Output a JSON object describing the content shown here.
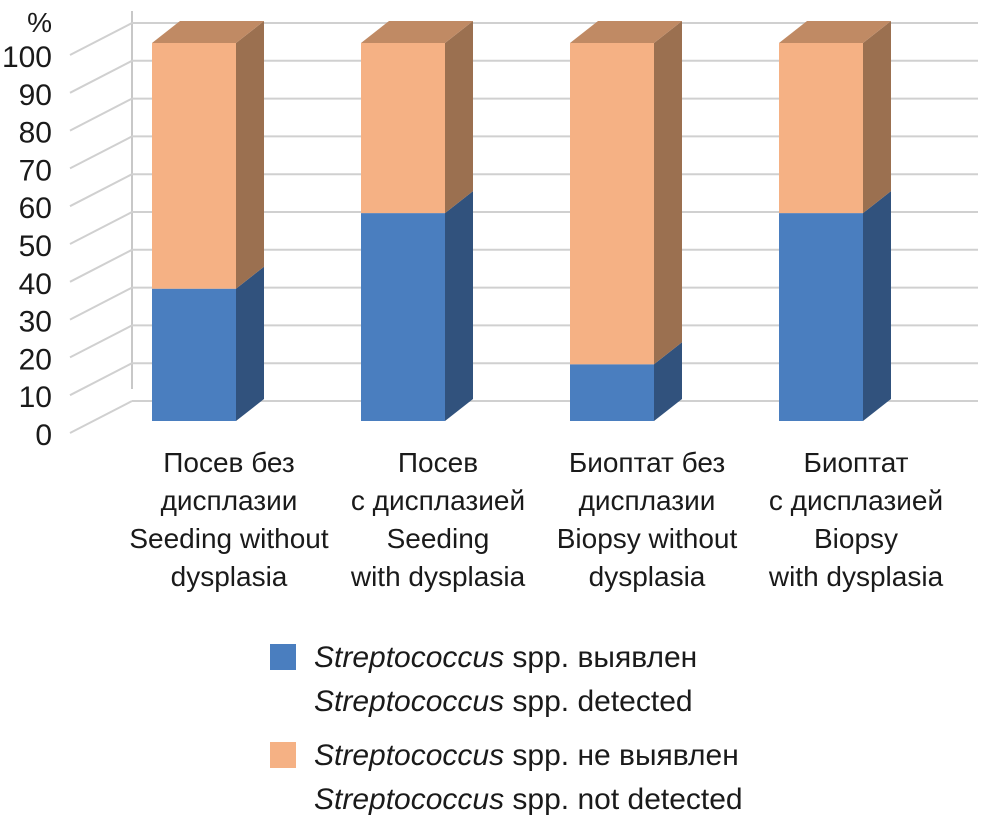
{
  "chart_data": {
    "type": "bar",
    "stacked": true,
    "three_d": true,
    "y_unit": "%",
    "ylim": [
      0,
      100
    ],
    "yticks": [
      0,
      10,
      20,
      30,
      40,
      50,
      60,
      70,
      80,
      90,
      100
    ],
    "grid": true,
    "legend_position": "bottom",
    "categories": [
      [
        "Посев без",
        "дисплазии",
        "Seeding without",
        "dysplasia"
      ],
      [
        "Посев",
        "с дисплазией",
        "Seeding",
        "with dysplasia"
      ],
      [
        "Биоптат без",
        "дисплазии",
        "Biopsy without",
        "dysplasia"
      ],
      [
        "Биоптат",
        "с дисплазией",
        "Biopsy",
        "with dysplasia"
      ]
    ],
    "series": [
      {
        "name_lines": [
          {
            "italic": "Streptococcus",
            "rest": " spp. выявлен"
          },
          {
            "italic": "Streptococcus",
            "rest": " spp. detected"
          }
        ],
        "color": "#4a7ebf",
        "side_color": "#31527d",
        "values": [
          35,
          55,
          15,
          55
        ]
      },
      {
        "name_lines": [
          {
            "italic": "Streptococcus",
            "rest": " spp. не выявлен"
          },
          {
            "italic": "Streptococcus",
            "rest": " spp. not detected"
          }
        ],
        "color": "#f5b184",
        "side_color": "#9b7050",
        "top_color": "#c08a64",
        "values": [
          65,
          45,
          85,
          45
        ]
      }
    ]
  }
}
